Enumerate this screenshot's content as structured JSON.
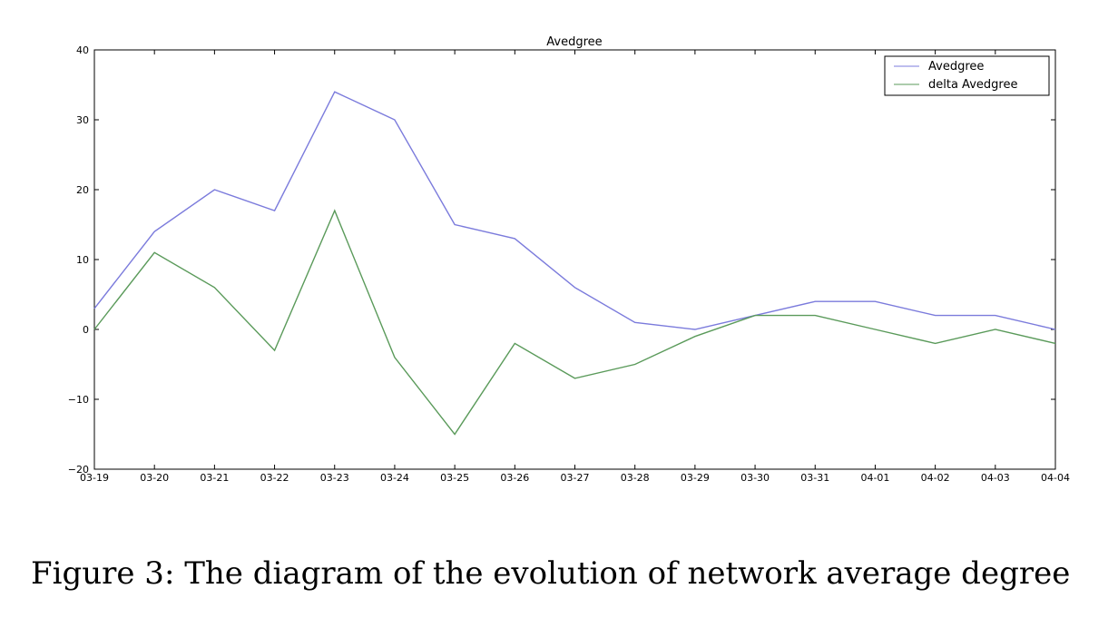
{
  "chart_data": {
    "type": "line",
    "title": "Avedgree",
    "xlabel": "",
    "ylabel": "",
    "categories": [
      "03-19",
      "03-20",
      "03-21",
      "03-22",
      "03-23",
      "03-24",
      "03-25",
      "03-26",
      "03-27",
      "03-28",
      "03-29",
      "03-30",
      "03-31",
      "04-01",
      "04-02",
      "04-03",
      "04-04"
    ],
    "ylim": [
      -20,
      40
    ],
    "yticks": [
      -20,
      -10,
      0,
      10,
      20,
      30,
      40
    ],
    "ytick_labels": [
      "−20",
      "−10",
      "0",
      "10",
      "20",
      "30",
      "40"
    ],
    "grid": false,
    "legend_position": "top-right",
    "series": [
      {
        "name": "Avedgree",
        "color": "#7b7bdc",
        "values": [
          3,
          14,
          20,
          17,
          34,
          30,
          15,
          13,
          6,
          1,
          0,
          2,
          4,
          4,
          2,
          2,
          0
        ]
      },
      {
        "name": "delta Avedgree",
        "color": "#5a9a5a",
        "values": [
          0,
          11,
          6,
          -3,
          17,
          -4,
          -15,
          -2,
          -7,
          -5,
          -1,
          2,
          2,
          0,
          -2,
          0,
          -2
        ]
      }
    ]
  },
  "caption": "Figure 3: The diagram of the evolution of network average degree"
}
